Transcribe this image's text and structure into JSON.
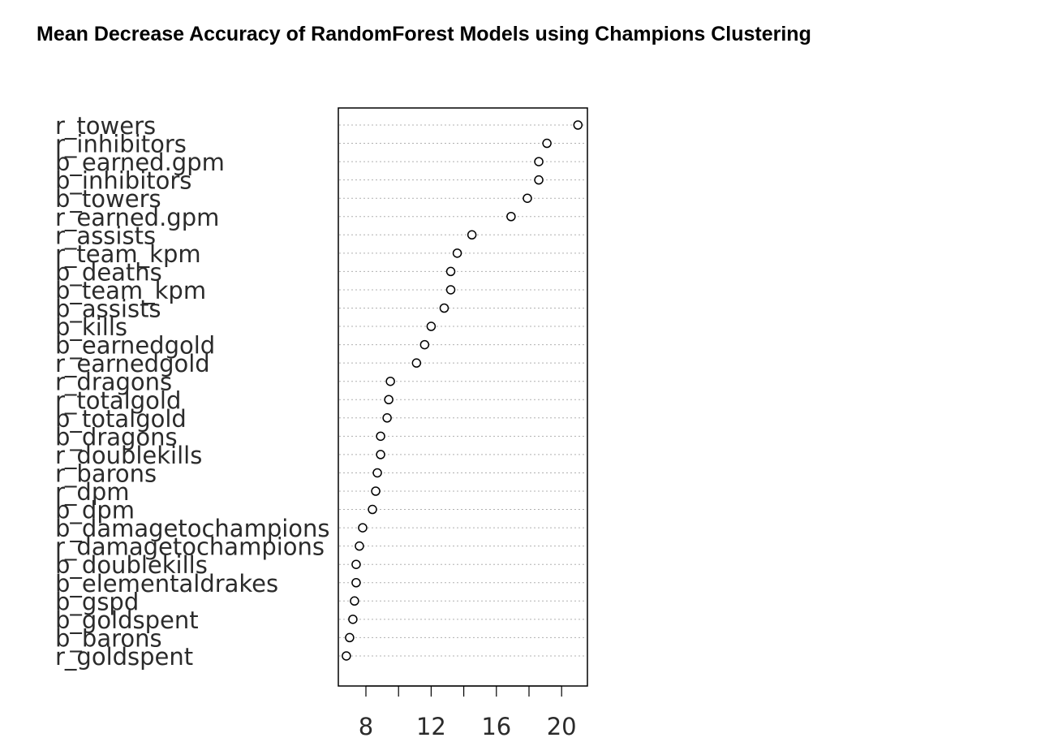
{
  "title": "Mean Decrease Accuracy of RandomForest Models using Champions Clustering",
  "chart_data": {
    "type": "scatter",
    "subtype": "dotchart",
    "title": "Mean Decrease Accuracy of RandomForest Models using Champions Clustering",
    "xlabel": "",
    "ylabel": "",
    "xlim": [
      6.5,
      21.5
    ],
    "xticks": [
      8,
      10,
      12,
      14,
      16,
      18,
      20
    ],
    "xtick_labels": [
      "8",
      "12",
      "16",
      "20"
    ],
    "xtick_labeled_values": [
      8,
      12,
      16,
      20
    ],
    "grid": "horizontal dotted",
    "marker": "open circle",
    "categories": [
      "r_towers",
      "r_inhibitors",
      "b_earned.gpm",
      "b_inhibitors",
      "b_towers",
      "r_earned.gpm",
      "r_assists",
      "r_team_kpm",
      "b_deaths",
      "b_team_kpm",
      "b_assists",
      "b_kills",
      "b_earnedgold",
      "r_earnedgold",
      "r_dragons",
      "r_totalgold",
      "b_totalgold",
      "b_dragons",
      "r_doublekills",
      "r_barons",
      "r_dpm",
      "b_dpm",
      "b_damagetochampions",
      "r_damagetochampions",
      "b_doublekills",
      "b_elementaldrakes",
      "b_gspd",
      "b_goldspent",
      "b_barons",
      "r_goldspent"
    ],
    "values": [
      21.0,
      19.1,
      18.6,
      18.6,
      17.9,
      16.9,
      14.5,
      13.6,
      13.2,
      13.2,
      12.8,
      12.0,
      11.6,
      11.1,
      9.5,
      9.4,
      9.3,
      8.9,
      8.9,
      8.7,
      8.6,
      8.4,
      7.8,
      7.6,
      7.4,
      7.4,
      7.3,
      7.2,
      7.0,
      6.8
    ]
  }
}
